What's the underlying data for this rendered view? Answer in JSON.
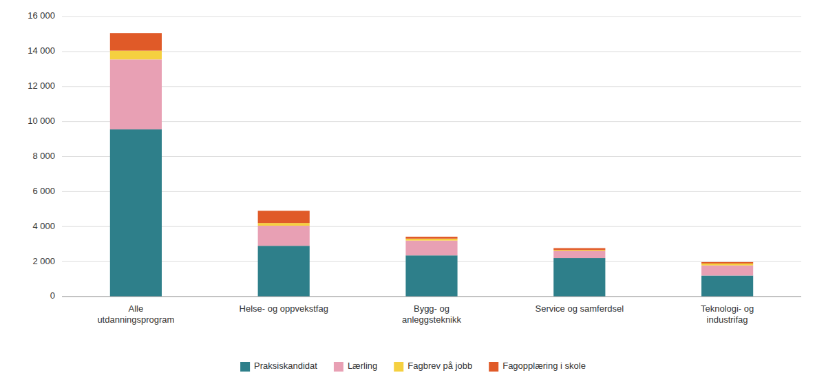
{
  "chart_data": {
    "type": "bar",
    "stacked": true,
    "categories": [
      "Alle\nutdanningsprogram",
      "Helse- og oppvekstfag",
      "Bygg- og\nanleggsteknikk",
      "Service og samferdsel",
      "Teknologi- og\nindustrifag"
    ],
    "series": [
      {
        "name": "Praksiskandidat",
        "color": "#2e7f8a",
        "values": [
          9550,
          2900,
          2350,
          2200,
          1200
        ]
      },
      {
        "name": "Lærling",
        "color": "#e8a0b4",
        "values": [
          4000,
          1150,
          850,
          400,
          580
        ]
      },
      {
        "name": "Fagbrev på jobb",
        "color": "#f5d040",
        "values": [
          500,
          150,
          110,
          55,
          110
        ]
      },
      {
        "name": "Fagopplæring i skole",
        "color": "#e05a28",
        "values": [
          1000,
          700,
          110,
          110,
          80
        ]
      }
    ],
    "ylim": [
      0,
      16000
    ],
    "yticks": [
      0,
      {
        "value": 2000,
        "label": "2 000"
      },
      {
        "value": 4000,
        "label": "4 000"
      },
      {
        "value": 6000,
        "label": "6 000"
      },
      {
        "value": 8000,
        "label": "8 000"
      },
      {
        "value": 10000,
        "label": "10 000"
      },
      {
        "value": 12000,
        "label": "12 000"
      },
      {
        "value": 14000,
        "label": "14 000"
      },
      {
        "value": 16000,
        "label": "16 000"
      }
    ],
    "grid": true,
    "legend": "bottom"
  }
}
